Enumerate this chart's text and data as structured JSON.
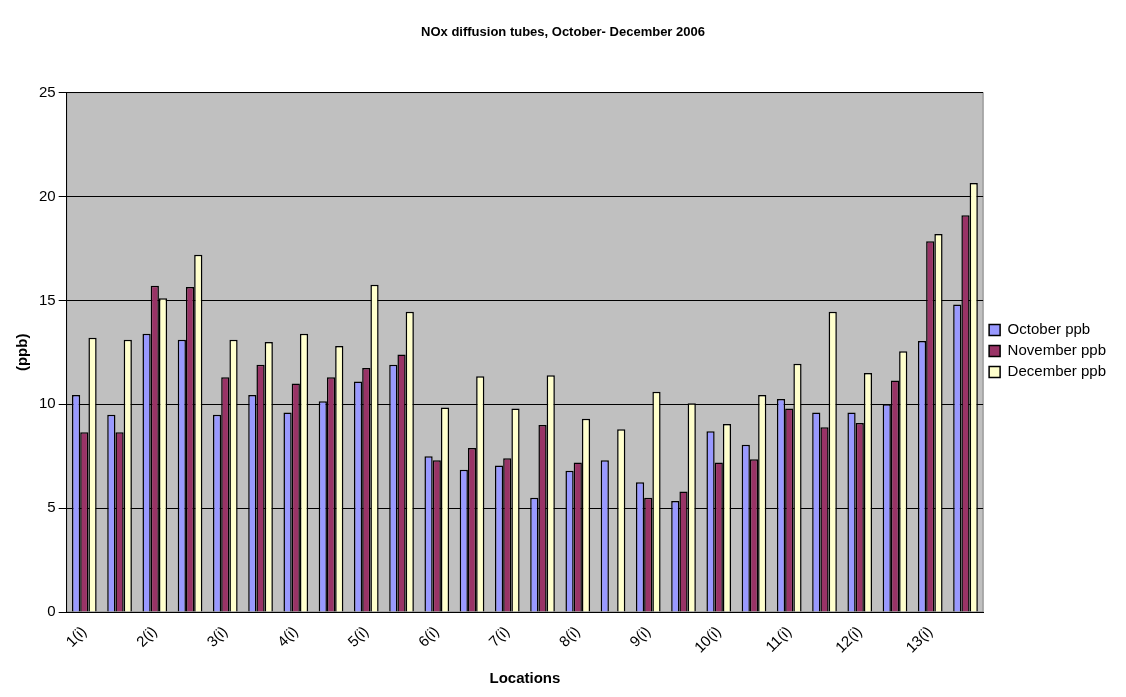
{
  "chart_data": {
    "type": "bar",
    "title": "NOx diffusion tubes, October- December 2006",
    "xlabel": "Locations",
    "ylabel": "(ppb)",
    "categories": [
      "1(i)",
      null,
      "2(i)",
      null,
      "3(i)",
      null,
      "4(i)",
      null,
      "5(i)",
      null,
      "6(i)",
      null,
      "7(i)",
      null,
      "8(i)",
      null,
      "9(i)",
      null,
      "10(i)",
      null,
      "11(i)",
      null,
      "12(i)",
      null,
      "13(i)",
      null
    ],
    "series": [
      {
        "name": "October ppb",
        "color": "#9999ff",
        "values": [
          10.45,
          9.5,
          13.4,
          13.1,
          9.5,
          10.45,
          9.6,
          10.15,
          11.1,
          11.9,
          7.5,
          6.85,
          7.05,
          5.5,
          6.8,
          7.3,
          6.25,
          5.35,
          8.7,
          8.05,
          10.25,
          9.6,
          9.6,
          10.0,
          13.05,
          14.8
        ]
      },
      {
        "name": "November ppb",
        "color": "#993366",
        "values": [
          8.65,
          8.65,
          15.7,
          15.65,
          11.3,
          11.9,
          11.0,
          11.3,
          11.75,
          12.4,
          7.3,
          7.9,
          7.4,
          9.0,
          7.2,
          null,
          5.5,
          5.8,
          7.2,
          7.35,
          9.8,
          8.9,
          9.1,
          11.15,
          17.85,
          19.1
        ]
      },
      {
        "name": "December ppb",
        "color": "#ffffcc",
        "values": [
          13.2,
          13.1,
          15.1,
          17.2,
          13.1,
          13.0,
          13.4,
          12.8,
          15.75,
          14.45,
          9.85,
          11.35,
          9.8,
          11.4,
          9.3,
          8.8,
          10.6,
          10.05,
          9.05,
          10.45,
          11.95,
          14.45,
          11.5,
          12.55,
          18.2,
          20.65
        ]
      }
    ],
    "ylim": [
      0,
      25
    ],
    "yticks": [
      0,
      5,
      10,
      15,
      20,
      25
    ],
    "grid": "y",
    "legend": "right"
  }
}
